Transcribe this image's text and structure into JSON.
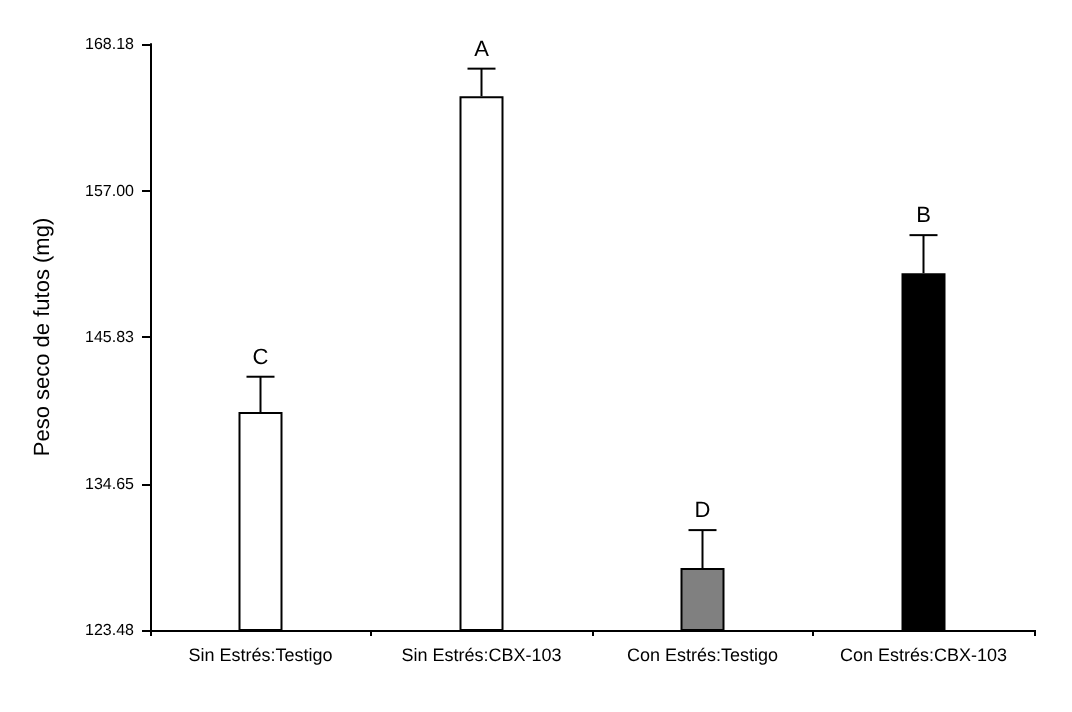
{
  "chart_data": {
    "type": "bar",
    "ylabel": "Peso seco de futos (mg)",
    "categories": [
      "Sin Estrés:Testigo",
      "Sin Estrés:CBX-103",
      "Con Estrés:Testigo",
      "Con Estrés:CBX-103"
    ],
    "values": [
      140.1,
      164.2,
      128.2,
      150.7
    ],
    "colors": [
      "#ffffff",
      "#ffffff",
      "#808080",
      "#000000"
    ],
    "errors": [
      [
        140.1,
        142.8
      ],
      [
        164.2,
        166.3
      ],
      [
        128.2,
        131.1
      ],
      [
        150.7,
        153.6
      ]
    ],
    "ylim": [
      123.48,
      168.18
    ],
    "yticks": [
      123.48,
      134.65,
      145.83,
      {
        "value": 157,
        "label": "157.00"
      },
      168.18
    ],
    "annotations": [
      {
        "text": "C",
        "x": "Sin Estrés:Testigo",
        "y": 142.8
      },
      {
        "text": "A",
        "x": "Sin Estrés:CBX-103",
        "y": 166.3
      },
      {
        "text": "D",
        "x": "Con Estrés:Testigo",
        "y": 131.1
      },
      {
        "text": "B",
        "x": "Con Estrés:CBX-103",
        "y": 153.6
      }
    ],
    "grid": false
  }
}
